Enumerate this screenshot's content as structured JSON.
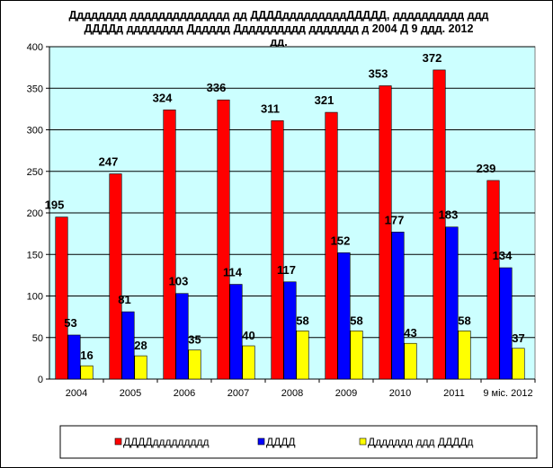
{
  "chart_data": {
    "type": "bar",
    "title_lines": [
      "Дддддддд дддддддддддддд дд ДДДДдддддддддДДДДД, дддддддддд ддд",
      "ДДДДд дддддддд Дддддд Дддддддддд ддддддд  д 2004 Д 9 ддд. 2012",
      "дд."
    ],
    "categories": [
      "2004",
      "2005",
      "2006",
      "2007",
      "2008",
      "2009",
      "2010",
      "2011",
      "9 міс. 2012"
    ],
    "series": [
      {
        "name": "ДДДДддддддддд",
        "color": "#ff0000",
        "values": [
          195,
          247,
          324,
          336,
          311,
          321,
          353,
          372,
          239
        ]
      },
      {
        "name": "ДДДД",
        "color": "#0000ff",
        "values": [
          53,
          81,
          103,
          114,
          117,
          152,
          177,
          183,
          134
        ]
      },
      {
        "name": "Ддддддд ддд ДДДДд",
        "color": "#ffff00",
        "values": [
          16,
          28,
          35,
          40,
          58,
          58,
          43,
          58,
          37
        ]
      }
    ],
    "ylim": [
      0,
      400
    ],
    "yticks": [
      "0",
      "50",
      "100",
      "150",
      "200",
      "250",
      "300",
      "350",
      "400"
    ],
    "grid": true,
    "plot_background": "#ccffff",
    "legend_position": "bottom"
  }
}
